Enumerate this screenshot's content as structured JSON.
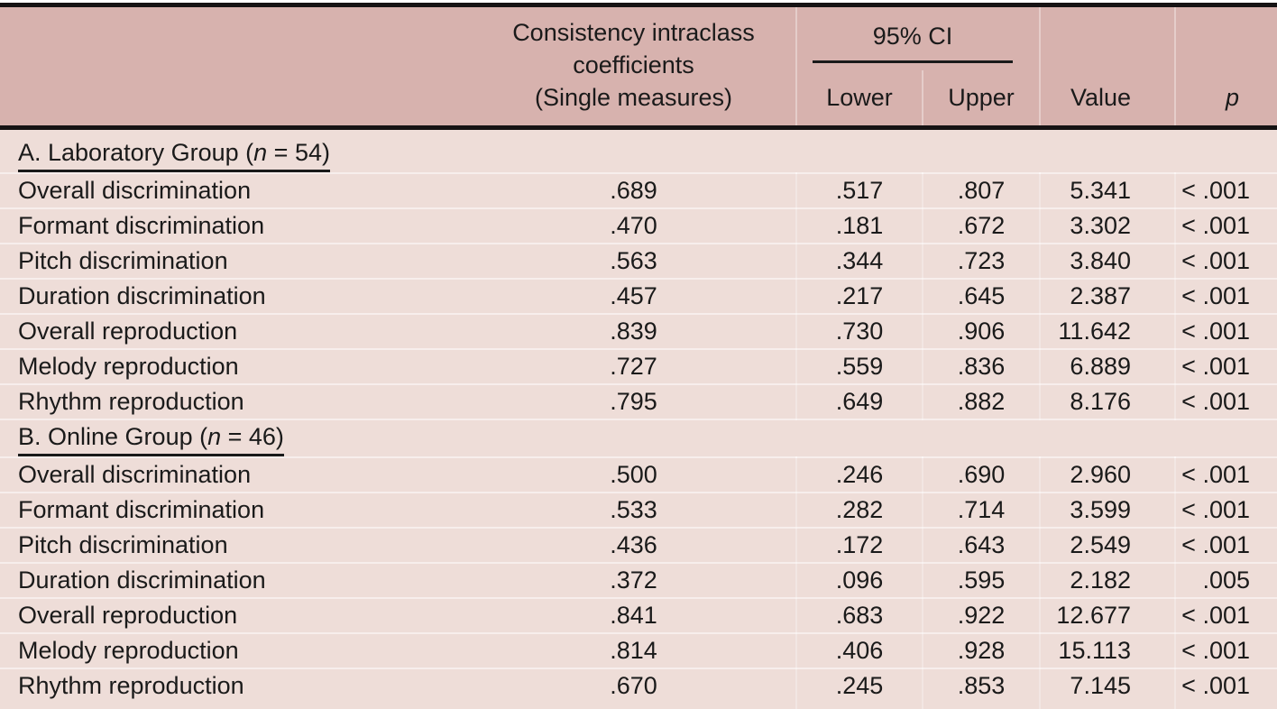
{
  "table": {
    "header": {
      "label_col": "",
      "icc_line1": "Consistency intraclass coefficients",
      "icc_line2": "(Single measures)",
      "ci_group": "95% CI",
      "lower": "Lower",
      "upper": "Upper",
      "value": "Value",
      "p": "p"
    },
    "colors": {
      "header_bg": "#d7b2ae",
      "body_bg": "#eeddd8",
      "rule": "#161314",
      "text": "#1a1a1a"
    },
    "rows": [
      {
        "type": "group",
        "prefix": "A. Laboratory Group (",
        "italic": "n",
        "suffix": " = 54)"
      },
      {
        "type": "data",
        "label": "Overall discrimination",
        "icc": ".689",
        "lower": ".517",
        "upper": ".807",
        "value": "5.341",
        "p": "< .001"
      },
      {
        "type": "data",
        "label": "Formant discrimination",
        "icc": ".470",
        "lower": ".181",
        "upper": ".672",
        "value": "3.302",
        "p": "< .001"
      },
      {
        "type": "data",
        "label": "Pitch discrimination",
        "icc": ".563",
        "lower": ".344",
        "upper": ".723",
        "value": "3.840",
        "p": "< .001"
      },
      {
        "type": "data",
        "label": "Duration discrimination",
        "icc": ".457",
        "lower": ".217",
        "upper": ".645",
        "value": "2.387",
        "p": "< .001"
      },
      {
        "type": "data",
        "label": "Overall reproduction",
        "icc": ".839",
        "lower": ".730",
        "upper": ".906",
        "value": "11.642",
        "p": "< .001"
      },
      {
        "type": "data",
        "label": "Melody reproduction",
        "icc": ".727",
        "lower": ".559",
        "upper": ".836",
        "value": "6.889",
        "p": "< .001"
      },
      {
        "type": "data",
        "label": "Rhythm reproduction",
        "icc": ".795",
        "lower": ".649",
        "upper": ".882",
        "value": "8.176",
        "p": "< .001"
      },
      {
        "type": "group",
        "prefix": "B. Online Group (",
        "italic": "n",
        "suffix": " = 46)"
      },
      {
        "type": "data",
        "label": "Overall discrimination",
        "icc": ".500",
        "lower": ".246",
        "upper": ".690",
        "value": "2.960",
        "p": "< .001"
      },
      {
        "type": "data",
        "label": "Formant discrimination",
        "icc": ".533",
        "lower": ".282",
        "upper": ".714",
        "value": "3.599",
        "p": "< .001"
      },
      {
        "type": "data",
        "label": "Pitch discrimination",
        "icc": ".436",
        "lower": ".172",
        "upper": ".643",
        "value": "2.549",
        "p": "< .001"
      },
      {
        "type": "data",
        "label": "Duration discrimination",
        "icc": ".372",
        "lower": ".096",
        "upper": ".595",
        "value": "2.182",
        "p": ".005"
      },
      {
        "type": "data",
        "label": "Overall reproduction",
        "icc": ".841",
        "lower": ".683",
        "upper": ".922",
        "value": "12.677",
        "p": "< .001"
      },
      {
        "type": "data",
        "label": "Melody reproduction",
        "icc": ".814",
        "lower": ".406",
        "upper": ".928",
        "value": "15.113",
        "p": "< .001"
      },
      {
        "type": "data",
        "label": "Rhythm reproduction",
        "icc": ".670",
        "lower": ".245",
        "upper": ".853",
        "value": "7.145",
        "p": "< .001"
      }
    ]
  }
}
